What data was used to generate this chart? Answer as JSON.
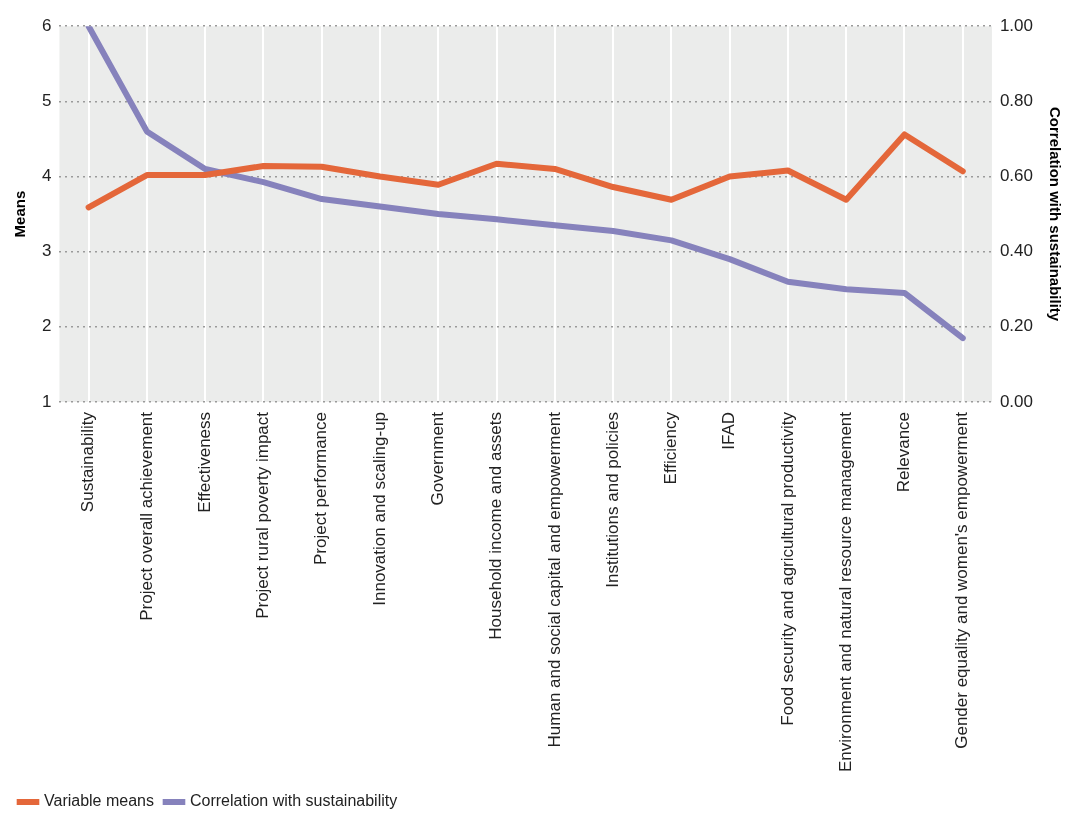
{
  "chart_data": {
    "type": "line",
    "ylabel": "Means",
    "y2label": "Correlation with sustainability",
    "categories": [
      "Sustainability",
      "Project overall achievement",
      "Effectiveness",
      "Project rural poverty impact",
      "Project performance",
      "Innovation and scaling-up",
      "Government",
      "Household income and assets",
      "Human and social capital and empowerment",
      "Institutions and policies",
      "Efficiency",
      "IFAD",
      "Food security and agricultural productivity",
      "Environment and natural resource management",
      "Relevance",
      "Gender equality and women's empowerment"
    ],
    "series": [
      {
        "name": "Variable means",
        "color": "#e4673a",
        "values": [
          3.59,
          4.02,
          4.02,
          4.14,
          4.13,
          4.0,
          3.89,
          4.17,
          4.1,
          3.86,
          3.69,
          4.0,
          4.08,
          3.69,
          4.56,
          4.07
        ]
      },
      {
        "name": "Correlation with sustainability",
        "color": "#8682bc",
        "axis": "y2",
        "values": [
          1.0,
          0.72,
          0.62,
          0.585,
          0.54,
          0.52,
          0.5,
          0.486,
          0.47,
          0.455,
          0.43,
          0.38,
          0.32,
          0.3,
          0.29,
          0.17
        ]
      }
    ],
    "ylim": [
      1,
      6
    ],
    "yticks": [
      1,
      2,
      3,
      4,
      5,
      6
    ],
    "y2lim": [
      0,
      1
    ],
    "y2ticks": [
      {
        "value": 0,
        "label": "0.00"
      },
      {
        "value": 0.2,
        "label": "0.20"
      },
      {
        "value": 0.4,
        "label": "0.40"
      },
      {
        "value": 0.6,
        "label": "0.60"
      },
      {
        "value": 0.8,
        "label": "0.80"
      },
      {
        "value": 1,
        "label": "1.00"
      }
    ],
    "grid": true,
    "legend": "bottom left"
  }
}
